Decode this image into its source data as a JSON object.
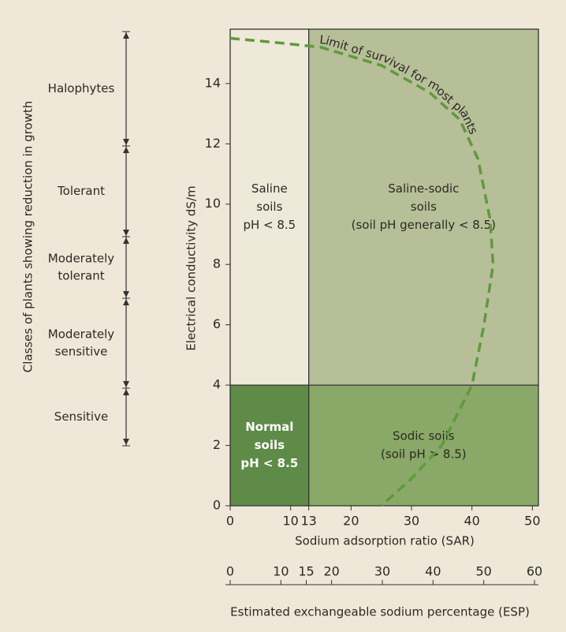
{
  "chart_data": {
    "type": "region",
    "x_label": "Sodium adsorption ratio (SAR)",
    "y_label": "Electrical conductivity dS/m",
    "xlim": [
      0,
      51
    ],
    "ylim": [
      0,
      15.8
    ],
    "xticks": [
      0,
      10,
      13,
      20,
      30,
      40,
      50
    ],
    "yticks": [
      0,
      2,
      4,
      6,
      8,
      10,
      12,
      14
    ],
    "sar_boundary": 13,
    "ec_boundary": 4,
    "regions": [
      {
        "name": [
          "Saline",
          "soils",
          "pH < 8.5"
        ],
        "color": "#efe9da",
        "text_color": "#2b2a22"
      },
      {
        "name": [
          "Saline-sodic",
          "soils",
          "(soil pH generally < 8.5)"
        ],
        "color": "#b7bf98",
        "text_color": "#2b2a22"
      },
      {
        "name": [
          "Normal",
          "soils",
          "pH < 8.5"
        ],
        "color": "#5e8b48",
        "text_color": "#ffffff"
      },
      {
        "name": [
          "Sodic soils",
          "(soil pH > 8.5)"
        ],
        "color": "#8aa867",
        "text_color": "#2b2a22"
      }
    ],
    "curve": {
      "label": "Limit of survival for most plants",
      "color": "#5f9a3c",
      "x": [
        0,
        8,
        15,
        25,
        33,
        38,
        41,
        43,
        43.5,
        42,
        40,
        35,
        30,
        25
      ],
      "y": [
        15.5,
        15.35,
        15.2,
        14.6,
        13.7,
        12.8,
        11.5,
        9.5,
        8,
        6,
        4,
        2,
        0.9,
        0
      ]
    },
    "x2_label": "Estimated exchangeable sodium percentage (ESP)",
    "x2lim": [
      0,
      60
    ],
    "x2ticks": [
      0,
      10,
      15,
      20,
      30,
      40,
      50,
      60
    ],
    "classes": {
      "label": "Classes of plants showing reduction in growth",
      "names": [
        [
          "Halophytes"
        ],
        [
          "Tolerant"
        ],
        [
          "Moderately",
          "tolerant"
        ],
        [
          "Moderately",
          "sensitive"
        ],
        [
          "Sensitive"
        ]
      ]
    }
  }
}
